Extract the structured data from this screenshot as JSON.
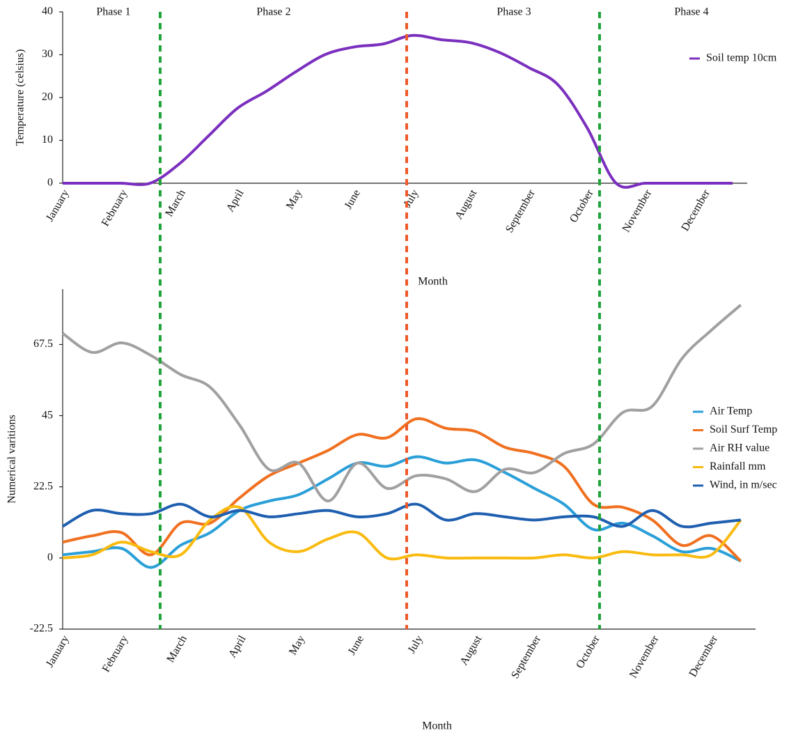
{
  "chart_data": [
    {
      "type": "line",
      "annotations": [
        "Phase 1",
        "Phase 2",
        "Phase 3",
        "Phase 4"
      ],
      "x_label": "Month",
      "y_label": "Temperature (celsius)",
      "categories": [
        "January",
        null,
        "February",
        null,
        "March",
        null,
        "April",
        null,
        "May",
        null,
        "June",
        null,
        "July",
        null,
        "August",
        null,
        "September",
        null,
        "October",
        null,
        "November",
        null,
        "December",
        null
      ],
      "series": [
        {
          "name": "Soil temp 10cm",
          "color": "#7b2fbe",
          "values": [
            0,
            0,
            0,
            0,
            4.5,
            11,
            17.5,
            21.5,
            26,
            30,
            31.8,
            32.5,
            34.5,
            33.5,
            32.8,
            30.5,
            27,
            23,
            13,
            0,
            0,
            0,
            0,
            0
          ]
        }
      ],
      "ylim": [
        0,
        40
      ],
      "yticks": [
        0,
        10,
        20,
        30,
        40
      ],
      "grid": false
    },
    {
      "type": "line",
      "x_label": "Month",
      "y_label": "Numerical varitions",
      "categories": [
        "January",
        null,
        "February",
        null,
        "March",
        null,
        "April",
        null,
        "May",
        null,
        "June",
        null,
        "July",
        null,
        "August",
        null,
        "September",
        null,
        "October",
        null,
        "November",
        null,
        "December",
        null
      ],
      "series": [
        {
          "name": "Air Temp",
          "color": "#2a9fd8",
          "values": [
            1,
            2,
            3,
            -3,
            4,
            8,
            15,
            18,
            20,
            25,
            30,
            29,
            32,
            30,
            31,
            27,
            22,
            17,
            9,
            11,
            7,
            2,
            3,
            -1
          ]
        },
        {
          "name": "Soil Surf Temp",
          "color": "#f07020",
          "values": [
            5,
            7,
            8,
            1,
            11,
            11,
            19,
            26,
            30,
            34,
            39,
            38,
            44,
            41,
            40,
            35,
            33,
            29,
            17,
            16,
            12,
            4,
            7,
            -1
          ]
        },
        {
          "name": "Air RH value",
          "color": "#a0a0a0",
          "values": [
            71,
            65,
            68,
            64,
            58,
            54,
            42,
            28,
            30,
            18,
            30,
            22,
            26,
            25,
            21,
            28,
            27,
            33,
            36,
            46,
            48,
            63,
            72,
            80
          ]
        },
        {
          "name": "Rainfall mm",
          "color": "#f9bb10",
          "values": [
            0,
            1,
            5,
            2,
            1,
            12,
            16,
            5,
            2,
            6,
            8,
            0,
            1,
            0,
            0,
            0,
            0,
            1,
            0,
            2,
            1,
            1,
            1,
            12
          ]
        },
        {
          "name": "Wind, in m/sec",
          "color": "#1f5fb0",
          "values": [
            10,
            15,
            14,
            14,
            17,
            13,
            15,
            13,
            14,
            15,
            13,
            14,
            17,
            12,
            14,
            13,
            12,
            13,
            13,
            10,
            15,
            10,
            11,
            12
          ]
        }
      ],
      "ylim": [
        -22.5,
        85
      ],
      "yticks": [
        -22.5,
        0,
        22.5,
        45,
        67.5
      ],
      "grid": false
    }
  ]
}
